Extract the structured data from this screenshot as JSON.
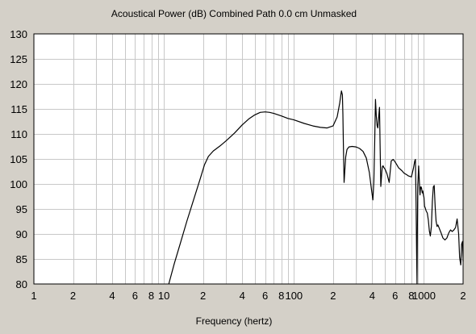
{
  "chart_data": {
    "type": "line",
    "title": "Acoustical Power (dB)    Combined    Path 0.0 cm    Unmasked",
    "xlabel": "Frequency (hertz)",
    "ylabel": "",
    "x_scale": "log",
    "xlim": [
      1,
      2000
    ],
    "ylim": [
      80,
      130
    ],
    "grid": true,
    "legend": "none",
    "x_tick_labels": [
      {
        "value": 1,
        "label": "1"
      },
      {
        "value": 2,
        "label": "2"
      },
      {
        "value": 4,
        "label": "4"
      },
      {
        "value": 6,
        "label": "6"
      },
      {
        "value": 8,
        "label": "8"
      },
      {
        "value": 10,
        "label": "10"
      },
      {
        "value": 20,
        "label": "2"
      },
      {
        "value": 40,
        "label": "4"
      },
      {
        "value": 60,
        "label": "6"
      },
      {
        "value": 80,
        "label": "8"
      },
      {
        "value": 100,
        "label": "100"
      },
      {
        "value": 200,
        "label": "2"
      },
      {
        "value": 400,
        "label": "4"
      },
      {
        "value": 600,
        "label": "6"
      },
      {
        "value": 800,
        "label": "8"
      },
      {
        "value": 1000,
        "label": "1000"
      },
      {
        "value": 2000,
        "label": "2"
      }
    ],
    "y_ticks": [
      80,
      85,
      90,
      95,
      100,
      105,
      110,
      115,
      120,
      125,
      130
    ],
    "line_color": "#000000",
    "grid_color": "#c8c8c8",
    "series": [
      {
        "x": [
          10.9,
          12,
          13.5,
          15,
          17,
          19,
          20.5,
          22,
          24,
          27,
          30,
          35,
          40,
          45,
          50,
          55,
          60,
          65,
          70,
          80,
          90,
          100,
          120,
          140,
          160,
          180,
          200,
          215,
          225,
          232,
          236,
          238,
          240,
          243,
          246,
          250,
          256,
          265,
          280,
          300,
          320,
          340,
          360,
          380,
          395,
          405,
          412,
          418,
          424,
          430,
          436,
          442,
          448,
          455,
          460,
          466,
          470,
          474,
          478,
          482,
          486,
          490,
          495,
          505,
          520,
          540,
          560,
          580,
          600,
          620,
          640,
          660,
          680,
          700,
          720,
          740,
          760,
          780,
          800,
          830,
          850,
          860,
          870,
          878,
          884,
          890,
          896,
          902,
          910,
          918,
          925,
          932,
          938,
          944,
          952,
          960,
          970,
          980,
          990,
          1000,
          1010,
          1020,
          1040,
          1060,
          1080,
          1100,
          1120,
          1140,
          1160,
          1180,
          1200,
          1220,
          1240,
          1260,
          1280,
          1300,
          1350,
          1400,
          1450,
          1500,
          1550,
          1600,
          1650,
          1700,
          1750,
          1800,
          1850,
          1880,
          1920,
          1950,
          1980,
          2000
        ],
        "y": [
          80,
          84,
          88.5,
          92.5,
          97,
          101,
          103.8,
          105.5,
          106.6,
          107.6,
          108.6,
          110.2,
          111.8,
          113,
          113.8,
          114.3,
          114.4,
          114.3,
          114.1,
          113.6,
          113.1,
          112.8,
          112.1,
          111.6,
          111.3,
          111.2,
          111.6,
          113.4,
          116.2,
          118.6,
          117.8,
          114,
          108,
          100.3,
          102.4,
          105.4,
          106.9,
          107.4,
          107.5,
          107.4,
          107.1,
          106.5,
          105.2,
          102.3,
          98.8,
          96.8,
          100.6,
          108,
          116.9,
          113.6,
          111.7,
          111.2,
          113.2,
          115.3,
          108,
          99.5,
          100.8,
          102.3,
          103.3,
          103.6,
          103.6,
          103.3,
          103.2,
          102.8,
          102,
          100.3,
          104.6,
          104.9,
          104.4,
          103.8,
          103.2,
          102.9,
          102.6,
          102.2,
          102.0,
          101.8,
          101.6,
          101.5,
          101.4,
          103.1,
          104.6,
          104.9,
          96.5,
          86,
          80,
          90,
          99.5,
          101.3,
          103.6,
          101.4,
          99.8,
          97.8,
          98.7,
          99.4,
          99.4,
          99.1,
          98.2,
          98.6,
          97.8,
          97.3,
          95.5,
          95.3,
          94.6,
          94.2,
          92.8,
          90.6,
          89.6,
          91.5,
          96.5,
          99.4,
          99.7,
          95.4,
          92.6,
          91.5,
          91.8,
          91.4,
          90.3,
          89.2,
          88.8,
          89.2,
          90.2,
          90.8,
          90.5,
          90.8,
          91.3,
          93,
          90,
          85.3,
          83.8,
          88,
          88.5,
          84.5
        ]
      }
    ]
  }
}
